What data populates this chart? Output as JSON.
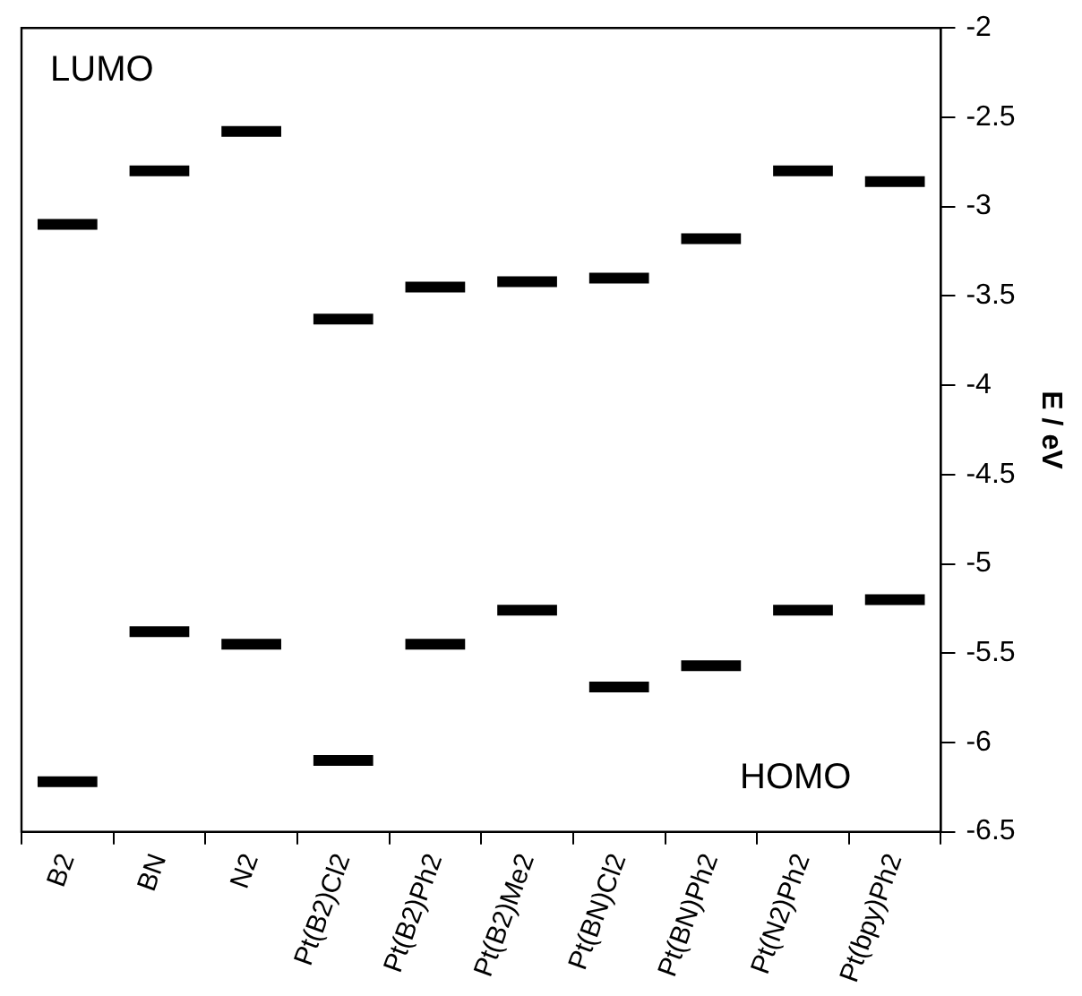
{
  "chart_data": {
    "type": "box",
    "ylabel": "E / eV",
    "categories": [
      "B2",
      "BN",
      "N2",
      "Pt(B2)Cl2",
      "Pt(B2)Ph2",
      "Pt(B2)Me2",
      "Pt(BN)Cl2",
      "Pt(BN)Ph2",
      "Pt(N2)Ph2",
      "Pt(bpy)Ph2"
    ],
    "series": [
      {
        "color": "#000000",
        "boxes": [
          {
            "low": -3.1,
            "q1": -3.1,
            "median": -3.1,
            "q3": -3.1,
            "high": -3.1
          },
          {
            "low": -2.8,
            "q1": -2.8,
            "median": -2.8,
            "q3": -2.8,
            "high": -2.8
          },
          {
            "low": -2.58,
            "q1": -2.58,
            "median": -2.58,
            "q3": -2.58,
            "high": -2.58
          },
          {
            "low": -3.63,
            "q1": -3.63,
            "median": -3.63,
            "q3": -3.63,
            "high": -3.63
          },
          {
            "low": -3.45,
            "q1": -3.45,
            "median": -3.45,
            "q3": -3.45,
            "high": -3.45
          },
          {
            "low": -3.42,
            "q1": -3.42,
            "median": -3.42,
            "q3": -3.42,
            "high": -3.42
          },
          {
            "low": -3.4,
            "q1": -3.4,
            "median": -3.4,
            "q3": -3.4,
            "high": -3.4
          },
          {
            "low": -3.18,
            "q1": -3.18,
            "median": -3.18,
            "q3": -3.18,
            "high": -3.18
          },
          {
            "low": -2.8,
            "q1": -2.8,
            "median": -2.8,
            "q3": -2.8,
            "high": -2.8
          },
          {
            "low": -2.86,
            "q1": -2.86,
            "median": -2.86,
            "q3": -2.86,
            "high": -2.86
          }
        ]
      },
      {
        "color": "#000000",
        "boxes": [
          {
            "low": -6.22,
            "q1": -6.22,
            "median": -6.22,
            "q3": -6.22,
            "high": -6.22
          },
          {
            "low": -5.38,
            "q1": -5.38,
            "median": -5.38,
            "q3": -5.38,
            "high": -5.38
          },
          {
            "low": -5.45,
            "q1": -5.45,
            "median": -5.45,
            "q3": -5.45,
            "high": -5.45
          },
          {
            "low": -6.1,
            "q1": -6.1,
            "median": -6.1,
            "q3": -6.1,
            "high": -6.1
          },
          {
            "low": -5.45,
            "q1": -5.45,
            "median": -5.45,
            "q3": -5.45,
            "high": -5.45
          },
          {
            "low": -5.26,
            "q1": -5.26,
            "median": -5.26,
            "q3": -5.26,
            "high": -5.26
          },
          {
            "low": -5.69,
            "q1": -5.69,
            "median": -5.69,
            "q3": -5.69,
            "high": -5.69
          },
          {
            "low": -5.57,
            "q1": -5.57,
            "median": -5.57,
            "q3": -5.57,
            "high": -5.57
          },
          {
            "low": -5.26,
            "q1": -5.26,
            "median": -5.26,
            "q3": -5.26,
            "high": -5.26
          },
          {
            "low": -5.2,
            "q1": -5.2,
            "median": -5.2,
            "q3": -5.2,
            "high": -5.2
          }
        ]
      }
    ],
    "ylim": [
      -6.5,
      -2
    ],
    "yticks": [
      -6.5,
      -6,
      -5.5,
      -5,
      -4.5,
      -4,
      -3.5,
      -3,
      -2.5,
      -2
    ],
    "annotations": [
      "LUMO",
      "HOMO"
    ],
    "grid": false,
    "legend": false
  }
}
